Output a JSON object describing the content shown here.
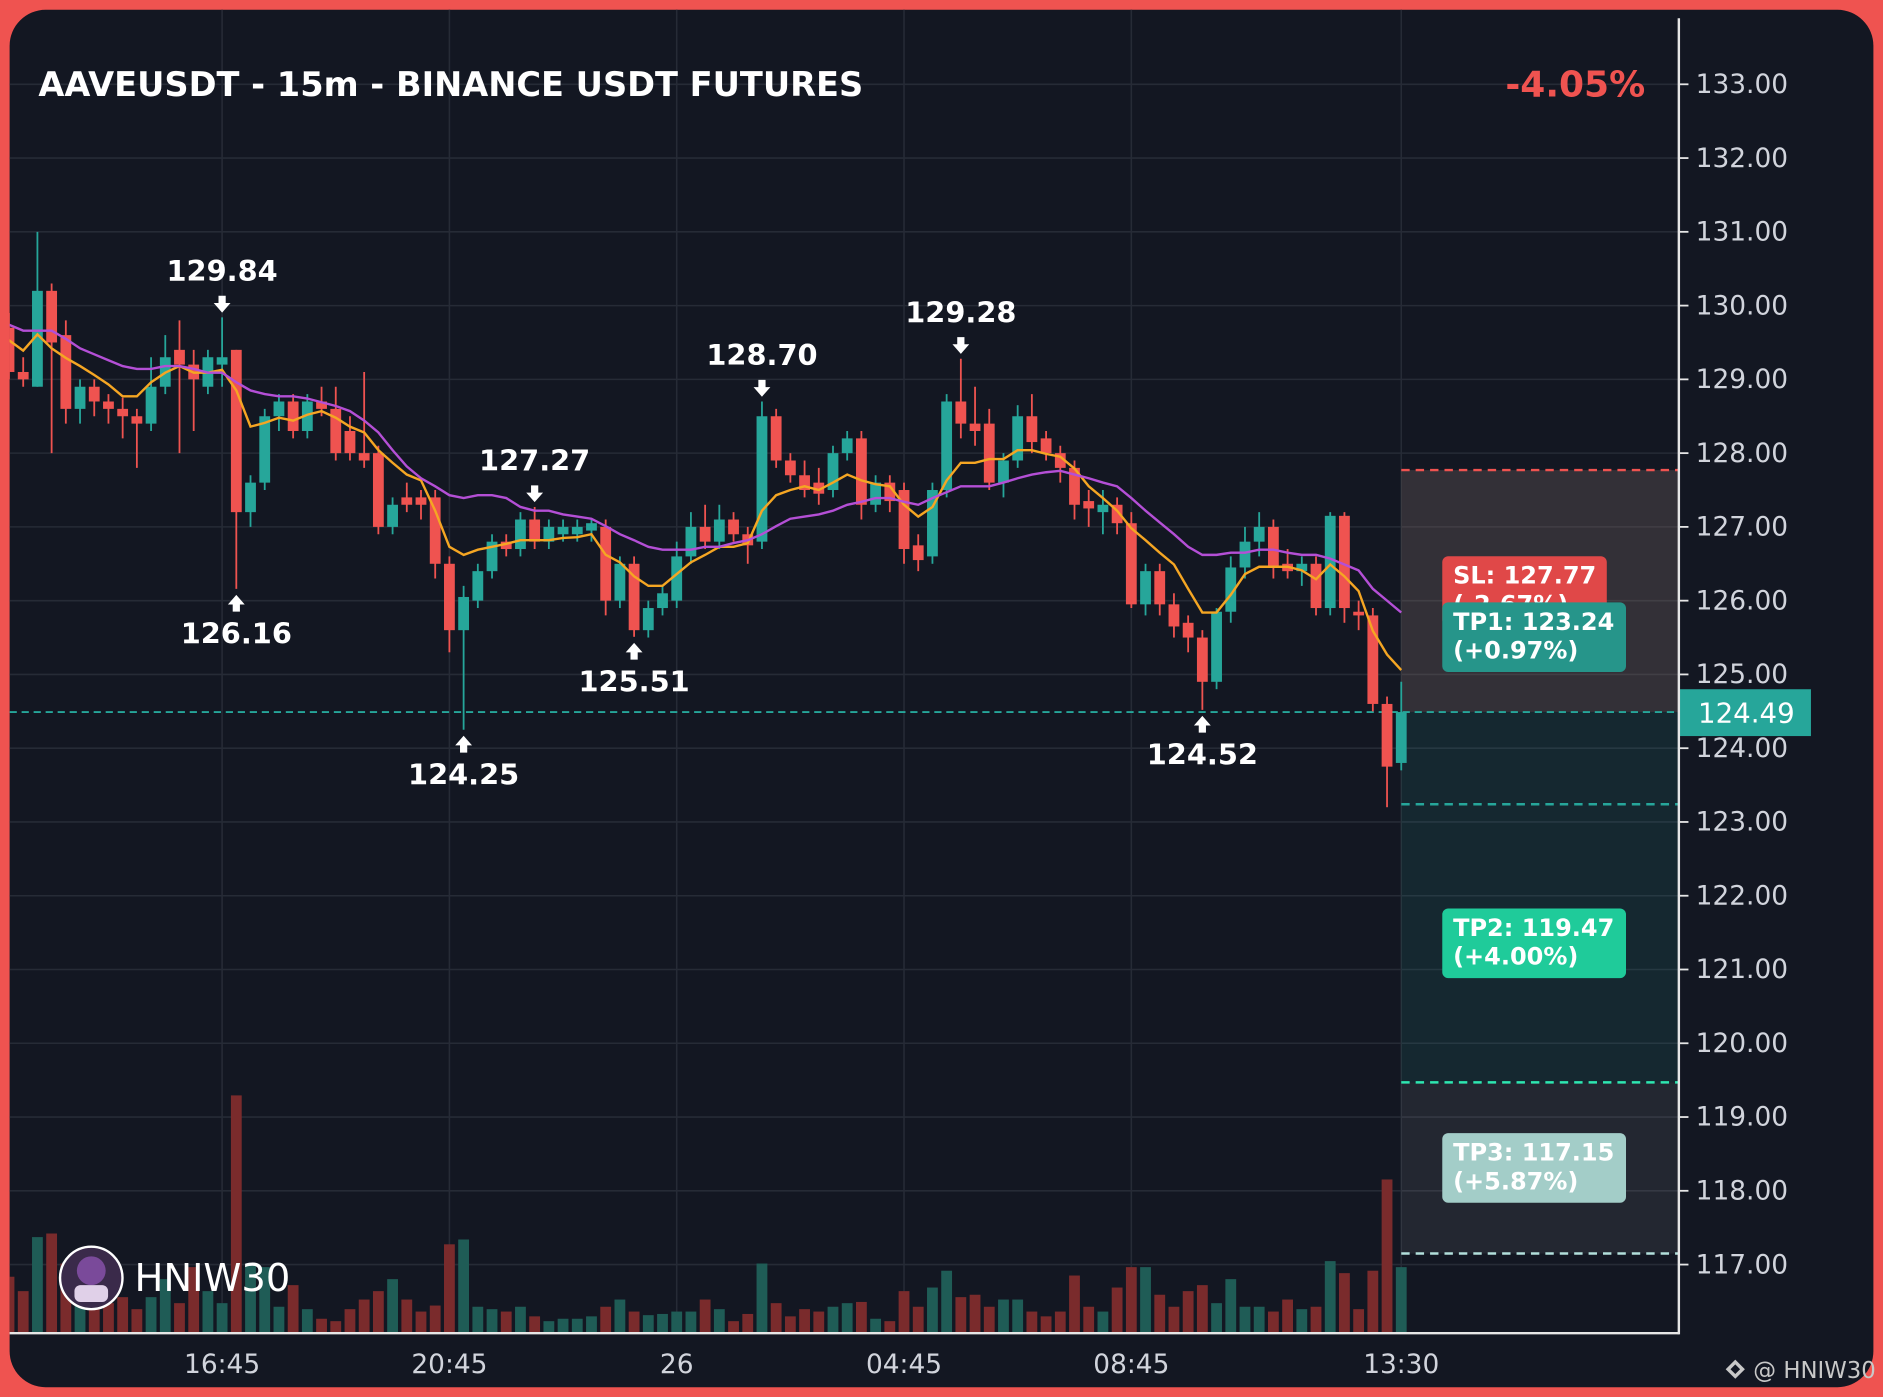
{
  "chart_data": {
    "type": "candlestick",
    "title": "AAVEUSDT - 15m - BINANCE USDT FUTURES",
    "change": {
      "value": -4.05,
      "label": "-4.05%"
    },
    "watermark": "HNIW30",
    "footer": "@ HNIW30",
    "up_color": "#26a69a",
    "down_color": "#ef5350",
    "grid": true,
    "ylim": [
      116.07,
      134.01
    ],
    "yticks": [
      {
        "value": 117,
        "label": "117.00"
      },
      {
        "value": 118,
        "label": "118.00"
      },
      {
        "value": 119,
        "label": "119.00"
      },
      {
        "value": 120,
        "label": "120.00"
      },
      {
        "value": 121,
        "label": "121.00"
      },
      {
        "value": 122,
        "label": "122.00"
      },
      {
        "value": 123,
        "label": "123.00"
      },
      {
        "value": 124,
        "label": "124.00"
      },
      {
        "value": 125,
        "label": "125.00"
      },
      {
        "value": 126,
        "label": "126.00"
      },
      {
        "value": 127,
        "label": "127.00"
      },
      {
        "value": 128,
        "label": "128.00"
      },
      {
        "value": 129,
        "label": "129.00"
      },
      {
        "value": 130,
        "label": "130.00"
      },
      {
        "value": 131,
        "label": "131.00"
      },
      {
        "value": 132,
        "label": "132.00"
      },
      {
        "value": 133,
        "label": "133.00"
      }
    ],
    "categories": [
      null,
      null,
      null,
      null,
      null,
      null,
      null,
      null,
      null,
      null,
      null,
      null,
      null,
      null,
      null,
      "16:45",
      null,
      null,
      null,
      null,
      null,
      null,
      null,
      null,
      null,
      null,
      null,
      null,
      null,
      null,
      null,
      "20:45",
      null,
      null,
      null,
      null,
      null,
      null,
      null,
      null,
      null,
      null,
      null,
      null,
      null,
      null,
      null,
      "26",
      null,
      null,
      null,
      null,
      null,
      null,
      null,
      null,
      null,
      null,
      null,
      null,
      null,
      null,
      null,
      "04:45",
      null,
      null,
      null,
      null,
      null,
      null,
      null,
      null,
      null,
      null,
      null,
      null,
      null,
      null,
      null,
      "08:45",
      null,
      null,
      null,
      null,
      null,
      null,
      null,
      null,
      null,
      null,
      null,
      null,
      null,
      null,
      null,
      null,
      null,
      null,
      "13:30"
    ],
    "candles": [
      [
        129.7,
        129.9,
        129.0,
        129.1
      ],
      [
        129.1,
        129.3,
        128.9,
        129.0
      ],
      [
        128.9,
        131.0,
        128.9,
        130.2
      ],
      [
        130.2,
        130.3,
        128.0,
        129.5
      ],
      [
        129.6,
        129.8,
        128.4,
        128.6
      ],
      [
        128.6,
        129.0,
        128.4,
        128.9
      ],
      [
        128.9,
        129.0,
        128.5,
        128.7
      ],
      [
        128.7,
        128.8,
        128.4,
        128.6
      ],
      [
        128.6,
        128.75,
        128.2,
        128.5
      ],
      [
        128.5,
        128.6,
        127.8,
        128.4
      ],
      [
        128.4,
        129.3,
        128.3,
        128.9
      ],
      [
        128.9,
        129.6,
        128.8,
        129.3
      ],
      [
        129.4,
        129.8,
        128.0,
        129.2
      ],
      [
        129.2,
        129.4,
        128.3,
        129.0
      ],
      [
        128.9,
        129.4,
        128.8,
        129.3
      ],
      [
        129.2,
        129.84,
        128.9,
        129.3
      ],
      [
        129.4,
        129.4,
        126.16,
        127.2
      ],
      [
        127.2,
        127.7,
        127.0,
        127.6
      ],
      [
        127.6,
        128.6,
        127.5,
        128.5
      ],
      [
        128.5,
        128.8,
        128.3,
        128.7
      ],
      [
        128.7,
        128.8,
        128.2,
        128.3
      ],
      [
        128.3,
        128.8,
        128.2,
        128.7
      ],
      [
        128.7,
        128.9,
        128.5,
        128.6
      ],
      [
        128.6,
        128.9,
        127.9,
        128.0
      ],
      [
        128.3,
        128.5,
        127.9,
        128.0
      ],
      [
        128.0,
        129.1,
        127.8,
        127.9
      ],
      [
        128.0,
        128.1,
        126.9,
        127.0
      ],
      [
        127.0,
        127.4,
        126.9,
        127.3
      ],
      [
        127.4,
        127.6,
        127.2,
        127.3
      ],
      [
        127.4,
        127.5,
        127.1,
        127.3
      ],
      [
        127.4,
        127.5,
        126.3,
        126.5
      ],
      [
        126.5,
        126.6,
        125.3,
        125.6
      ],
      [
        125.6,
        126.2,
        124.25,
        126.05
      ],
      [
        126.0,
        126.5,
        125.9,
        126.4
      ],
      [
        126.4,
        126.9,
        126.3,
        126.8
      ],
      [
        126.8,
        126.9,
        126.6,
        126.7
      ],
      [
        126.7,
        127.2,
        126.6,
        127.1
      ],
      [
        127.1,
        127.27,
        126.7,
        126.8
      ],
      [
        126.8,
        127.1,
        126.7,
        127.0
      ],
      [
        126.9,
        127.1,
        126.8,
        127.0
      ],
      [
        126.9,
        127.1,
        126.8,
        127.0
      ],
      [
        126.95,
        127.1,
        126.8,
        127.05
      ],
      [
        127.0,
        127.1,
        125.8,
        126.0
      ],
      [
        126.0,
        126.6,
        125.9,
        126.5
      ],
      [
        126.5,
        126.6,
        125.51,
        125.6
      ],
      [
        125.6,
        126.0,
        125.5,
        125.9
      ],
      [
        125.9,
        126.2,
        125.8,
        126.1
      ],
      [
        126.0,
        126.8,
        125.9,
        126.6
      ],
      [
        126.6,
        127.2,
        126.5,
        127.0
      ],
      [
        127.0,
        127.3,
        126.7,
        126.8
      ],
      [
        126.8,
        127.3,
        126.7,
        127.1
      ],
      [
        127.1,
        127.2,
        126.8,
        126.9
      ],
      [
        126.9,
        127.0,
        126.5,
        126.75
      ],
      [
        126.8,
        128.7,
        126.7,
        128.5
      ],
      [
        128.5,
        128.6,
        127.8,
        127.9
      ],
      [
        127.9,
        128.0,
        127.6,
        127.7
      ],
      [
        127.7,
        127.9,
        127.4,
        127.5
      ],
      [
        127.6,
        127.8,
        127.3,
        127.45
      ],
      [
        127.5,
        128.1,
        127.4,
        128.0
      ],
      [
        128.0,
        128.3,
        127.9,
        128.2
      ],
      [
        128.2,
        128.3,
        127.1,
        127.3
      ],
      [
        127.3,
        127.7,
        127.2,
        127.6
      ],
      [
        127.6,
        127.7,
        127.2,
        127.35
      ],
      [
        127.5,
        127.6,
        126.5,
        126.7
      ],
      [
        126.75,
        126.9,
        126.4,
        126.55
      ],
      [
        126.6,
        127.6,
        126.5,
        127.5
      ],
      [
        127.5,
        128.8,
        127.4,
        128.7
      ],
      [
        128.7,
        129.28,
        128.2,
        128.4
      ],
      [
        128.4,
        128.9,
        128.1,
        128.3
      ],
      [
        128.4,
        128.6,
        127.5,
        127.6
      ],
      [
        127.6,
        128.0,
        127.4,
        127.9
      ],
      [
        127.9,
        128.65,
        127.8,
        128.5
      ],
      [
        128.5,
        128.8,
        128.0,
        128.15
      ],
      [
        128.2,
        128.3,
        127.9,
        128.0
      ],
      [
        128.0,
        128.1,
        127.6,
        127.8
      ],
      [
        127.8,
        127.9,
        127.1,
        127.3
      ],
      [
        127.35,
        127.5,
        127.0,
        127.25
      ],
      [
        127.2,
        127.5,
        126.9,
        127.3
      ],
      [
        127.3,
        127.4,
        126.9,
        127.05
      ],
      [
        127.05,
        127.2,
        125.9,
        125.95
      ],
      [
        125.95,
        126.5,
        125.8,
        126.4
      ],
      [
        126.4,
        126.5,
        125.8,
        125.95
      ],
      [
        125.95,
        126.1,
        125.5,
        125.65
      ],
      [
        125.7,
        125.8,
        125.3,
        125.5
      ],
      [
        125.5,
        125.6,
        124.52,
        124.9
      ],
      [
        124.9,
        125.9,
        124.8,
        125.85
      ],
      [
        125.85,
        126.6,
        125.7,
        126.45
      ],
      [
        126.45,
        127.0,
        126.3,
        126.8
      ],
      [
        126.8,
        127.2,
        126.6,
        127.0
      ],
      [
        127.0,
        127.1,
        126.3,
        126.45
      ],
      [
        126.5,
        126.7,
        126.3,
        126.4
      ],
      [
        126.4,
        126.6,
        126.2,
        126.5
      ],
      [
        126.5,
        126.6,
        125.8,
        125.9
      ],
      [
        125.9,
        127.2,
        125.8,
        127.15
      ],
      [
        127.15,
        127.2,
        125.7,
        125.9
      ],
      [
        125.85,
        126.0,
        125.6,
        125.8
      ],
      [
        125.8,
        125.9,
        124.5,
        124.6
      ],
      [
        124.6,
        124.7,
        123.2,
        123.75
      ],
      [
        123.8,
        124.9,
        123.7,
        124.49
      ]
    ],
    "volume": [
      47,
      35,
      80,
      83,
      58,
      30,
      45,
      25,
      30,
      20,
      30,
      45,
      25,
      55,
      35,
      25,
      198,
      58,
      55,
      22,
      40,
      20,
      12,
      10,
      20,
      28,
      35,
      45,
      28,
      18,
      23,
      74,
      78,
      22,
      20,
      18,
      22,
      14,
      10,
      12,
      12,
      14,
      22,
      28,
      18,
      15,
      16,
      18,
      18,
      28,
      20,
      10,
      16,
      58,
      25,
      14,
      20,
      18,
      22,
      25,
      26,
      12,
      10,
      35,
      22,
      38,
      52,
      30,
      32,
      22,
      28,
      28,
      18,
      14,
      18,
      48,
      22,
      18,
      38,
      55,
      55,
      32,
      22,
      35,
      40,
      25,
      45,
      22,
      22,
      18,
      28,
      20,
      22,
      60,
      50,
      20,
      52,
      128,
      55
    ],
    "lines": [
      {
        "color": "#f5a623",
        "values": [
          129.53,
          129.39,
          129.61,
          129.42,
          129.29,
          129.18,
          129.06,
          128.93,
          128.77,
          128.77,
          128.96,
          129.09,
          129.18,
          129.09,
          129.09,
          129.13,
          128.85,
          128.36,
          128.41,
          128.48,
          128.44,
          128.52,
          128.57,
          128.48,
          128.36,
          128.28,
          128.04,
          127.87,
          127.71,
          127.63,
          127.22,
          126.73,
          126.62,
          126.69,
          126.73,
          126.77,
          126.82,
          126.82,
          126.82,
          126.85,
          126.86,
          126.9,
          126.62,
          126.52,
          126.33,
          126.2,
          126.2,
          126.36,
          126.52,
          126.62,
          126.73,
          126.73,
          126.78,
          127.22,
          127.43,
          127.5,
          127.55,
          127.5,
          127.6,
          127.71,
          127.63,
          127.58,
          127.55,
          127.3,
          127.14,
          127.27,
          127.63,
          127.87,
          127.87,
          127.92,
          127.92,
          128.04,
          128.04,
          127.99,
          127.95,
          127.79,
          127.55,
          127.39,
          127.22,
          126.98,
          126.82,
          126.65,
          126.49,
          126.16,
          125.84,
          125.84,
          126.08,
          126.36,
          126.46,
          126.46,
          126.46,
          126.41,
          126.29,
          126.49,
          126.33,
          126.13,
          125.59,
          125.27,
          125.06
        ]
      },
      {
        "color": "#b44fd6",
        "values": [
          129.74,
          129.66,
          129.66,
          129.66,
          129.55,
          129.42,
          129.34,
          129.26,
          129.18,
          129.14,
          129.14,
          129.18,
          129.18,
          129.14,
          129.09,
          129.09,
          128.96,
          128.85,
          128.8,
          128.77,
          128.77,
          128.74,
          128.69,
          128.64,
          128.57,
          128.44,
          128.28,
          128.04,
          127.82,
          127.66,
          127.55,
          127.43,
          127.39,
          127.43,
          127.43,
          127.39,
          127.27,
          127.22,
          127.22,
          127.17,
          127.14,
          127.11,
          127.01,
          126.9,
          126.82,
          126.73,
          126.69,
          126.69,
          126.69,
          126.73,
          126.73,
          126.78,
          126.82,
          126.9,
          127.01,
          127.11,
          127.14,
          127.17,
          127.22,
          127.3,
          127.34,
          127.39,
          127.39,
          127.34,
          127.3,
          127.39,
          127.47,
          127.55,
          127.55,
          127.55,
          127.6,
          127.66,
          127.71,
          127.74,
          127.76,
          127.71,
          127.66,
          127.6,
          127.55,
          127.39,
          127.22,
          127.06,
          126.9,
          126.73,
          126.62,
          126.62,
          126.65,
          126.65,
          126.69,
          126.69,
          126.65,
          126.62,
          126.62,
          126.57,
          126.49,
          126.41,
          126.16,
          126.0,
          125.84
        ]
      }
    ],
    "annotations": [
      {
        "value": 129.84,
        "at": "high"
      },
      {
        "value": 126.16,
        "at": "low"
      },
      {
        "value": 127.27,
        "at": "high"
      },
      {
        "value": 124.25,
        "at": "low"
      },
      {
        "value": 125.51,
        "at": "low"
      },
      {
        "value": 128.7,
        "label": "128.70",
        "at": "high"
      },
      {
        "value": 129.28,
        "at": "high"
      },
      {
        "value": 124.52,
        "at": "low"
      }
    ],
    "last_price": {
      "value": 124.49,
      "label": "124.49",
      "color": "#26a69a"
    },
    "levels": [
      {
        "label": "SL: 127.77",
        "value": 127.77,
        "change": "(-2.67%)",
        "color": "#e04848",
        "line_color": "#ef5350"
      },
      {
        "label": "TP1: 123.24",
        "value": 123.24,
        "change": "(+0.97%)",
        "color": "#26958a",
        "line_color": "#26a69a"
      },
      {
        "label": "TP2: 119.47",
        "value": 119.47,
        "change": "(+4.00%)",
        "color": "#1fcb9a",
        "line_color": "#2ee6b0"
      },
      {
        "label": "TP3: 117.15",
        "value": 117.15,
        "change": "(+5.87%)",
        "color": "#a3cdc8",
        "line_color": "#b2dfdb"
      }
    ]
  }
}
